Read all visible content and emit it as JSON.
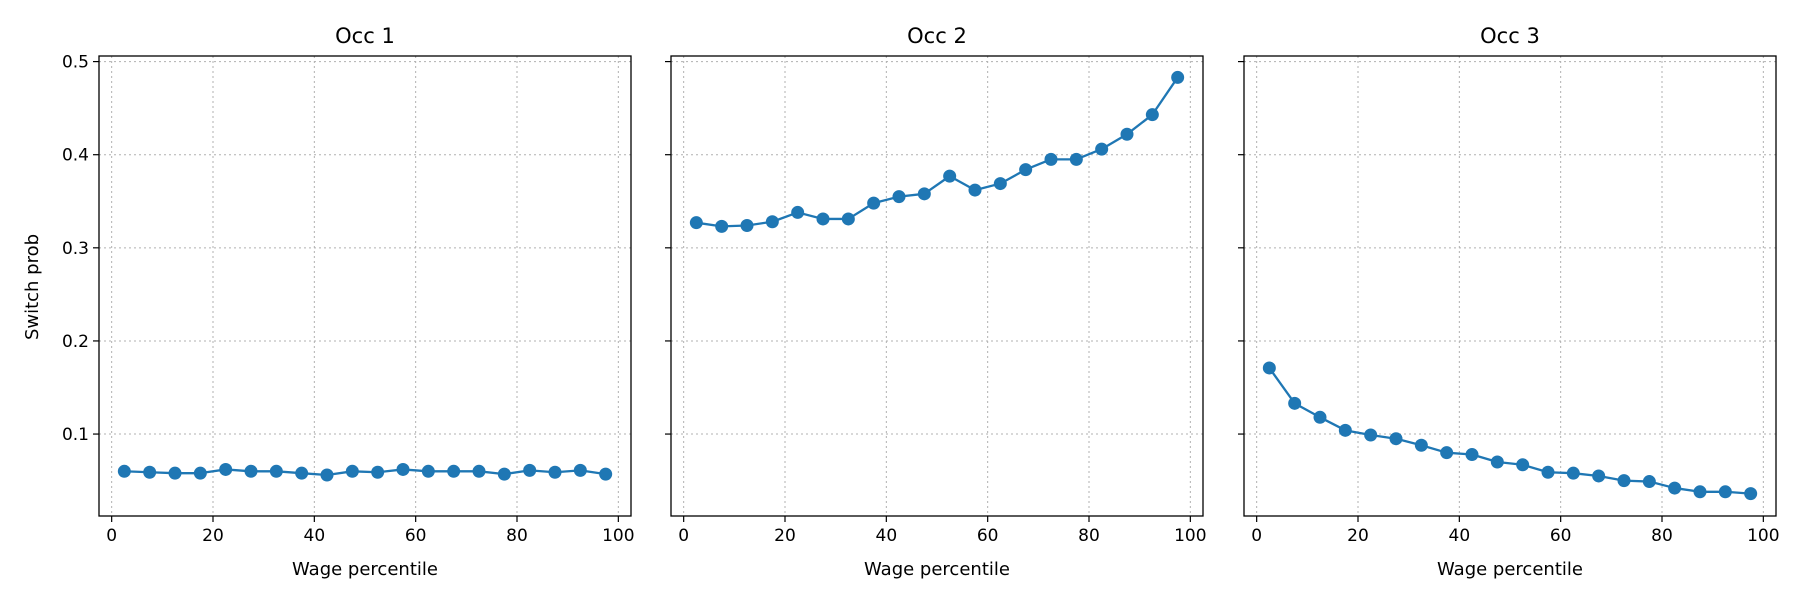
{
  "figure": {
    "ylabel": "Switch prob",
    "xlabel": "Wage percentile"
  },
  "chart_data": [
    {
      "type": "line",
      "title": "Occ 1",
      "xlabel": "Wage percentile",
      "ylabel": "Switch prob",
      "xlim": [
        -2.5,
        102.5
      ],
      "ylim": [
        0.012,
        0.506
      ],
      "xticks": [
        0,
        20,
        40,
        60,
        80,
        100
      ],
      "yticks": [
        0.1,
        0.2,
        0.3,
        0.4,
        0.5
      ],
      "ytick_labels_visible": true,
      "grid": true,
      "color": "#1f77b4",
      "x": [
        2.5,
        7.5,
        12.5,
        17.5,
        22.5,
        27.5,
        32.5,
        37.5,
        42.5,
        47.5,
        52.5,
        57.5,
        62.5,
        67.5,
        72.5,
        77.5,
        82.5,
        87.5,
        92.5,
        97.5
      ],
      "y": [
        0.06,
        0.059,
        0.058,
        0.058,
        0.062,
        0.06,
        0.06,
        0.058,
        0.056,
        0.06,
        0.059,
        0.062,
        0.06,
        0.06,
        0.06,
        0.057,
        0.061,
        0.059,
        0.061,
        0.057
      ]
    },
    {
      "type": "line",
      "title": "Occ 2",
      "xlabel": "Wage percentile",
      "ylabel": "",
      "xlim": [
        -2.5,
        102.5
      ],
      "ylim": [
        0.012,
        0.506
      ],
      "xticks": [
        0,
        20,
        40,
        60,
        80,
        100
      ],
      "yticks": [
        0.1,
        0.2,
        0.3,
        0.4,
        0.5
      ],
      "ytick_labels_visible": false,
      "grid": true,
      "color": "#1f77b4",
      "x": [
        2.5,
        7.5,
        12.5,
        17.5,
        22.5,
        27.5,
        32.5,
        37.5,
        42.5,
        47.5,
        52.5,
        57.5,
        62.5,
        67.5,
        72.5,
        77.5,
        82.5,
        87.5,
        92.5,
        97.5
      ],
      "y": [
        0.327,
        0.323,
        0.324,
        0.328,
        0.338,
        0.331,
        0.331,
        0.348,
        0.355,
        0.358,
        0.377,
        0.362,
        0.369,
        0.384,
        0.395,
        0.395,
        0.406,
        0.422,
        0.443,
        0.483
      ]
    },
    {
      "type": "line",
      "title": "Occ 3",
      "xlabel": "Wage percentile",
      "ylabel": "",
      "xlim": [
        -2.5,
        102.5
      ],
      "ylim": [
        0.012,
        0.506
      ],
      "xticks": [
        0,
        20,
        40,
        60,
        80,
        100
      ],
      "yticks": [
        0.1,
        0.2,
        0.3,
        0.4,
        0.5
      ],
      "ytick_labels_visible": false,
      "grid": true,
      "color": "#1f77b4",
      "x": [
        2.5,
        7.5,
        12.5,
        17.5,
        22.5,
        27.5,
        32.5,
        37.5,
        42.5,
        47.5,
        52.5,
        57.5,
        62.5,
        67.5,
        72.5,
        77.5,
        82.5,
        87.5,
        92.5,
        97.5
      ],
      "y": [
        0.171,
        0.133,
        0.118,
        0.104,
        0.099,
        0.095,
        0.088,
        0.08,
        0.078,
        0.07,
        0.067,
        0.059,
        0.058,
        0.055,
        0.05,
        0.049,
        0.042,
        0.038,
        0.038,
        0.036
      ]
    }
  ]
}
